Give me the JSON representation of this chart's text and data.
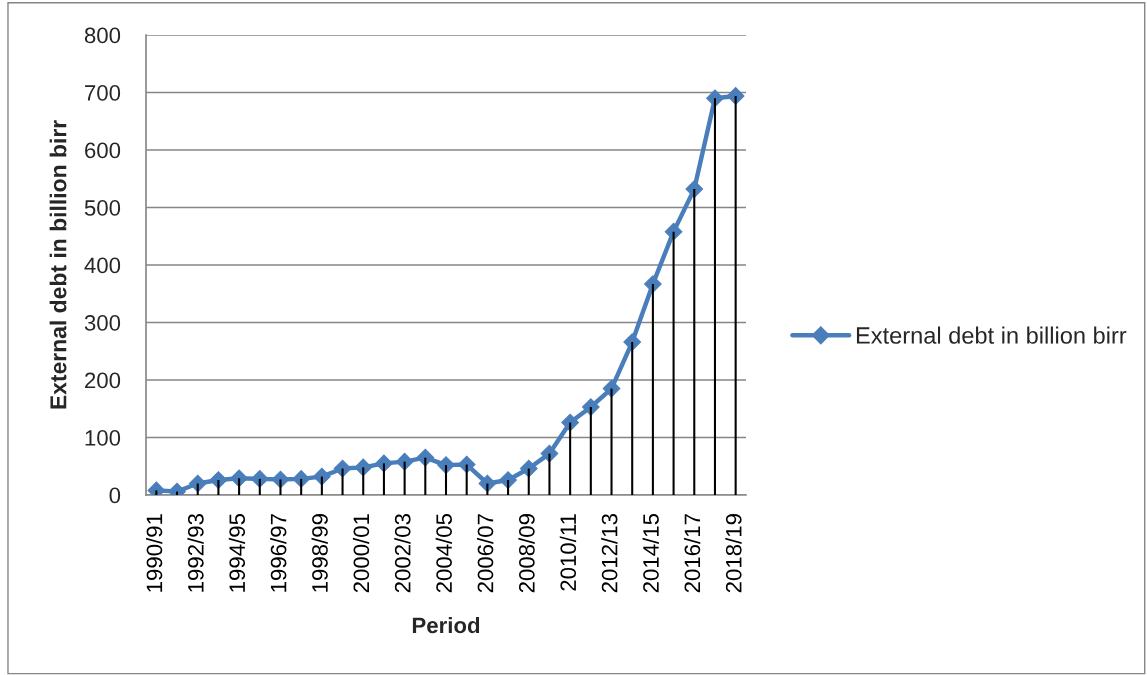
{
  "chart_data": {
    "type": "line",
    "xlabel": "Period",
    "ylabel": "External debt in billion birr",
    "categories": [
      "1990/91",
      null,
      "1992/93",
      null,
      "1994/95",
      null,
      "1996/97",
      null,
      "1998/99",
      null,
      "2000/01",
      null,
      "2002/03",
      null,
      "2004/05",
      null,
      "2006/07",
      null,
      "2008/09",
      null,
      "2010/11",
      null,
      "2012/13",
      null,
      "2014/15",
      null,
      "2016/17",
      null,
      "2018/19"
    ],
    "series": [
      {
        "type": "bar",
        "color": "#000000",
        "values": [
          8,
          6,
          20,
          26,
          29,
          28,
          27,
          28,
          32,
          46,
          48,
          55,
          58,
          65,
          52,
          53,
          20,
          26,
          46,
          72,
          126,
          153,
          185,
          266,
          367,
          458,
          532,
          690,
          694
        ]
      },
      {
        "name": "External debt in billion birr",
        "color": "#4a7ebb",
        "marker": "diamond",
        "values": [
          8,
          6,
          20,
          26,
          29,
          28,
          27,
          28,
          32,
          46,
          48,
          55,
          58,
          65,
          52,
          53,
          20,
          26,
          46,
          72,
          126,
          153,
          185,
          266,
          367,
          458,
          532,
          690,
          694
        ]
      }
    ],
    "ylim": [
      0,
      800
    ],
    "yticks": [
      0,
      100,
      200,
      300,
      400,
      500,
      600,
      700,
      800
    ],
    "grid": "y",
    "legend": "right",
    "line_style": "solid"
  }
}
